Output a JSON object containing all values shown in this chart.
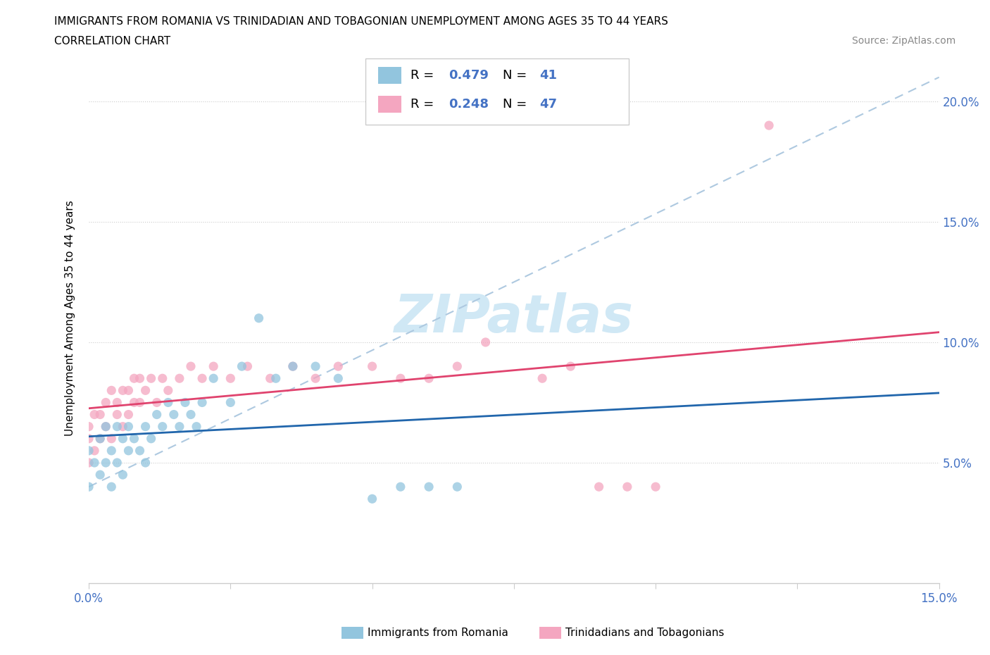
{
  "title_line1": "IMMIGRANTS FROM ROMANIA VS TRINIDADIAN AND TOBAGONIAN UNEMPLOYMENT AMONG AGES 35 TO 44 YEARS",
  "title_line2": "CORRELATION CHART",
  "source_text": "Source: ZipAtlas.com",
  "ylabel": "Unemployment Among Ages 35 to 44 years",
  "xlim": [
    0.0,
    0.15
  ],
  "ylim": [
    0.0,
    0.22
  ],
  "x_tick_positions": [
    0.0,
    0.025,
    0.05,
    0.075,
    0.1,
    0.125,
    0.15
  ],
  "x_tick_labels": [
    "0.0%",
    "",
    "",
    "",
    "",
    "",
    "15.0%"
  ],
  "y_tick_positions": [
    0.05,
    0.1,
    0.15,
    0.2
  ],
  "y_tick_labels": [
    "5.0%",
    "10.0%",
    "15.0%",
    "20.0%"
  ],
  "romania_R": 0.479,
  "romania_N": 41,
  "trinidad_R": 0.248,
  "trinidad_N": 47,
  "romania_color": "#92c5de",
  "trinidad_color": "#f4a6c0",
  "romania_line_color": "#2166ac",
  "trinidad_line_color": "#e0436e",
  "dashed_line_color": "#aec9e0",
  "watermark_color": "#d0e8f5",
  "romania_x": [
    0.0,
    0.0,
    0.001,
    0.002,
    0.002,
    0.003,
    0.003,
    0.004,
    0.004,
    0.005,
    0.005,
    0.006,
    0.006,
    0.007,
    0.007,
    0.008,
    0.009,
    0.01,
    0.01,
    0.011,
    0.012,
    0.013,
    0.014,
    0.015,
    0.016,
    0.017,
    0.018,
    0.019,
    0.02,
    0.022,
    0.025,
    0.027,
    0.03,
    0.033,
    0.036,
    0.04,
    0.044,
    0.05,
    0.055,
    0.06,
    0.065
  ],
  "romania_y": [
    0.04,
    0.055,
    0.05,
    0.045,
    0.06,
    0.05,
    0.065,
    0.04,
    0.055,
    0.05,
    0.065,
    0.045,
    0.06,
    0.055,
    0.065,
    0.06,
    0.055,
    0.065,
    0.05,
    0.06,
    0.07,
    0.065,
    0.075,
    0.07,
    0.065,
    0.075,
    0.07,
    0.065,
    0.075,
    0.085,
    0.075,
    0.09,
    0.11,
    0.085,
    0.09,
    0.09,
    0.085,
    0.035,
    0.04,
    0.04,
    0.04
  ],
  "trinidad_x": [
    0.0,
    0.0,
    0.0,
    0.001,
    0.001,
    0.002,
    0.002,
    0.003,
    0.003,
    0.004,
    0.004,
    0.005,
    0.005,
    0.006,
    0.006,
    0.007,
    0.007,
    0.008,
    0.008,
    0.009,
    0.009,
    0.01,
    0.011,
    0.012,
    0.013,
    0.014,
    0.016,
    0.018,
    0.02,
    0.022,
    0.025,
    0.028,
    0.032,
    0.036,
    0.04,
    0.044,
    0.05,
    0.055,
    0.06,
    0.065,
    0.07,
    0.08,
    0.085,
    0.09,
    0.095,
    0.1,
    0.12
  ],
  "trinidad_y": [
    0.05,
    0.06,
    0.065,
    0.055,
    0.07,
    0.06,
    0.07,
    0.065,
    0.075,
    0.06,
    0.08,
    0.07,
    0.075,
    0.065,
    0.08,
    0.07,
    0.08,
    0.075,
    0.085,
    0.075,
    0.085,
    0.08,
    0.085,
    0.075,
    0.085,
    0.08,
    0.085,
    0.09,
    0.085,
    0.09,
    0.085,
    0.09,
    0.085,
    0.09,
    0.085,
    0.09,
    0.09,
    0.085,
    0.085,
    0.09,
    0.1,
    0.085,
    0.09,
    0.04,
    0.04,
    0.04,
    0.19
  ]
}
